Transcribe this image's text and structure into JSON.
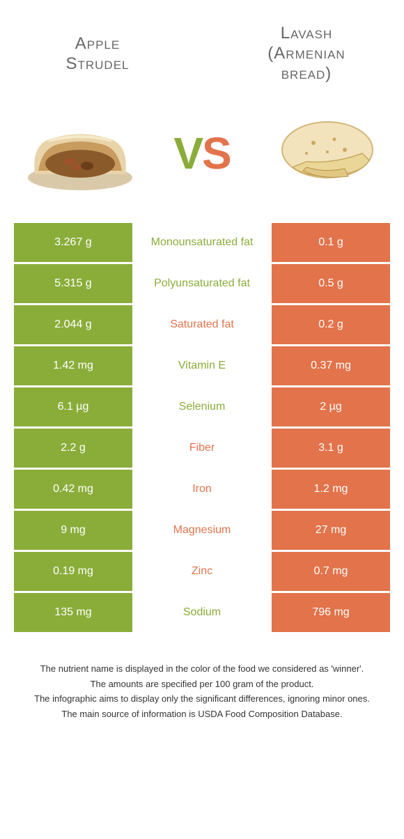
{
  "colors": {
    "green": "#8aad3a",
    "orange": "#e2734b",
    "title_text": "#666666",
    "footer_text": "#333333",
    "background": "#ffffff"
  },
  "header": {
    "left_title_line1": "Apple",
    "left_title_line2": "Strudel",
    "right_title_line1": "Lavash",
    "right_title_line2": "(Armenian",
    "right_title_line3": "bread)"
  },
  "vs": {
    "v": "V",
    "s": "S"
  },
  "rows": [
    {
      "left": "3.267 g",
      "label": "Monounsaturated fat",
      "right": "0.1 g",
      "winner": "green"
    },
    {
      "left": "5.315 g",
      "label": "Polyunsaturated fat",
      "right": "0.5 g",
      "winner": "green"
    },
    {
      "left": "2.044 g",
      "label": "Saturated fat",
      "right": "0.2 g",
      "winner": "orange"
    },
    {
      "left": "1.42 mg",
      "label": "Vitamin E",
      "right": "0.37 mg",
      "winner": "green"
    },
    {
      "left": "6.1 µg",
      "label": "Selenium",
      "right": "2 µg",
      "winner": "green"
    },
    {
      "left": "2.2 g",
      "label": "Fiber",
      "right": "3.1 g",
      "winner": "orange"
    },
    {
      "left": "0.42 mg",
      "label": "Iron",
      "right": "1.2 mg",
      "winner": "orange"
    },
    {
      "left": "9 mg",
      "label": "Magnesium",
      "right": "27 mg",
      "winner": "orange"
    },
    {
      "left": "0.19 mg",
      "label": "Zinc",
      "right": "0.7 mg",
      "winner": "orange"
    },
    {
      "left": "135 mg",
      "label": "Sodium",
      "right": "796 mg",
      "winner": "green"
    }
  ],
  "footer": {
    "line1": "The nutrient name is displayed in the color of the food we considered as 'winner'.",
    "line2": "The amounts are specified per 100 gram of the product.",
    "line3": "The infographic aims to display only the significant differences, ignoring minor ones.",
    "line4": "The main source of information is USDA Food Composition Database."
  }
}
